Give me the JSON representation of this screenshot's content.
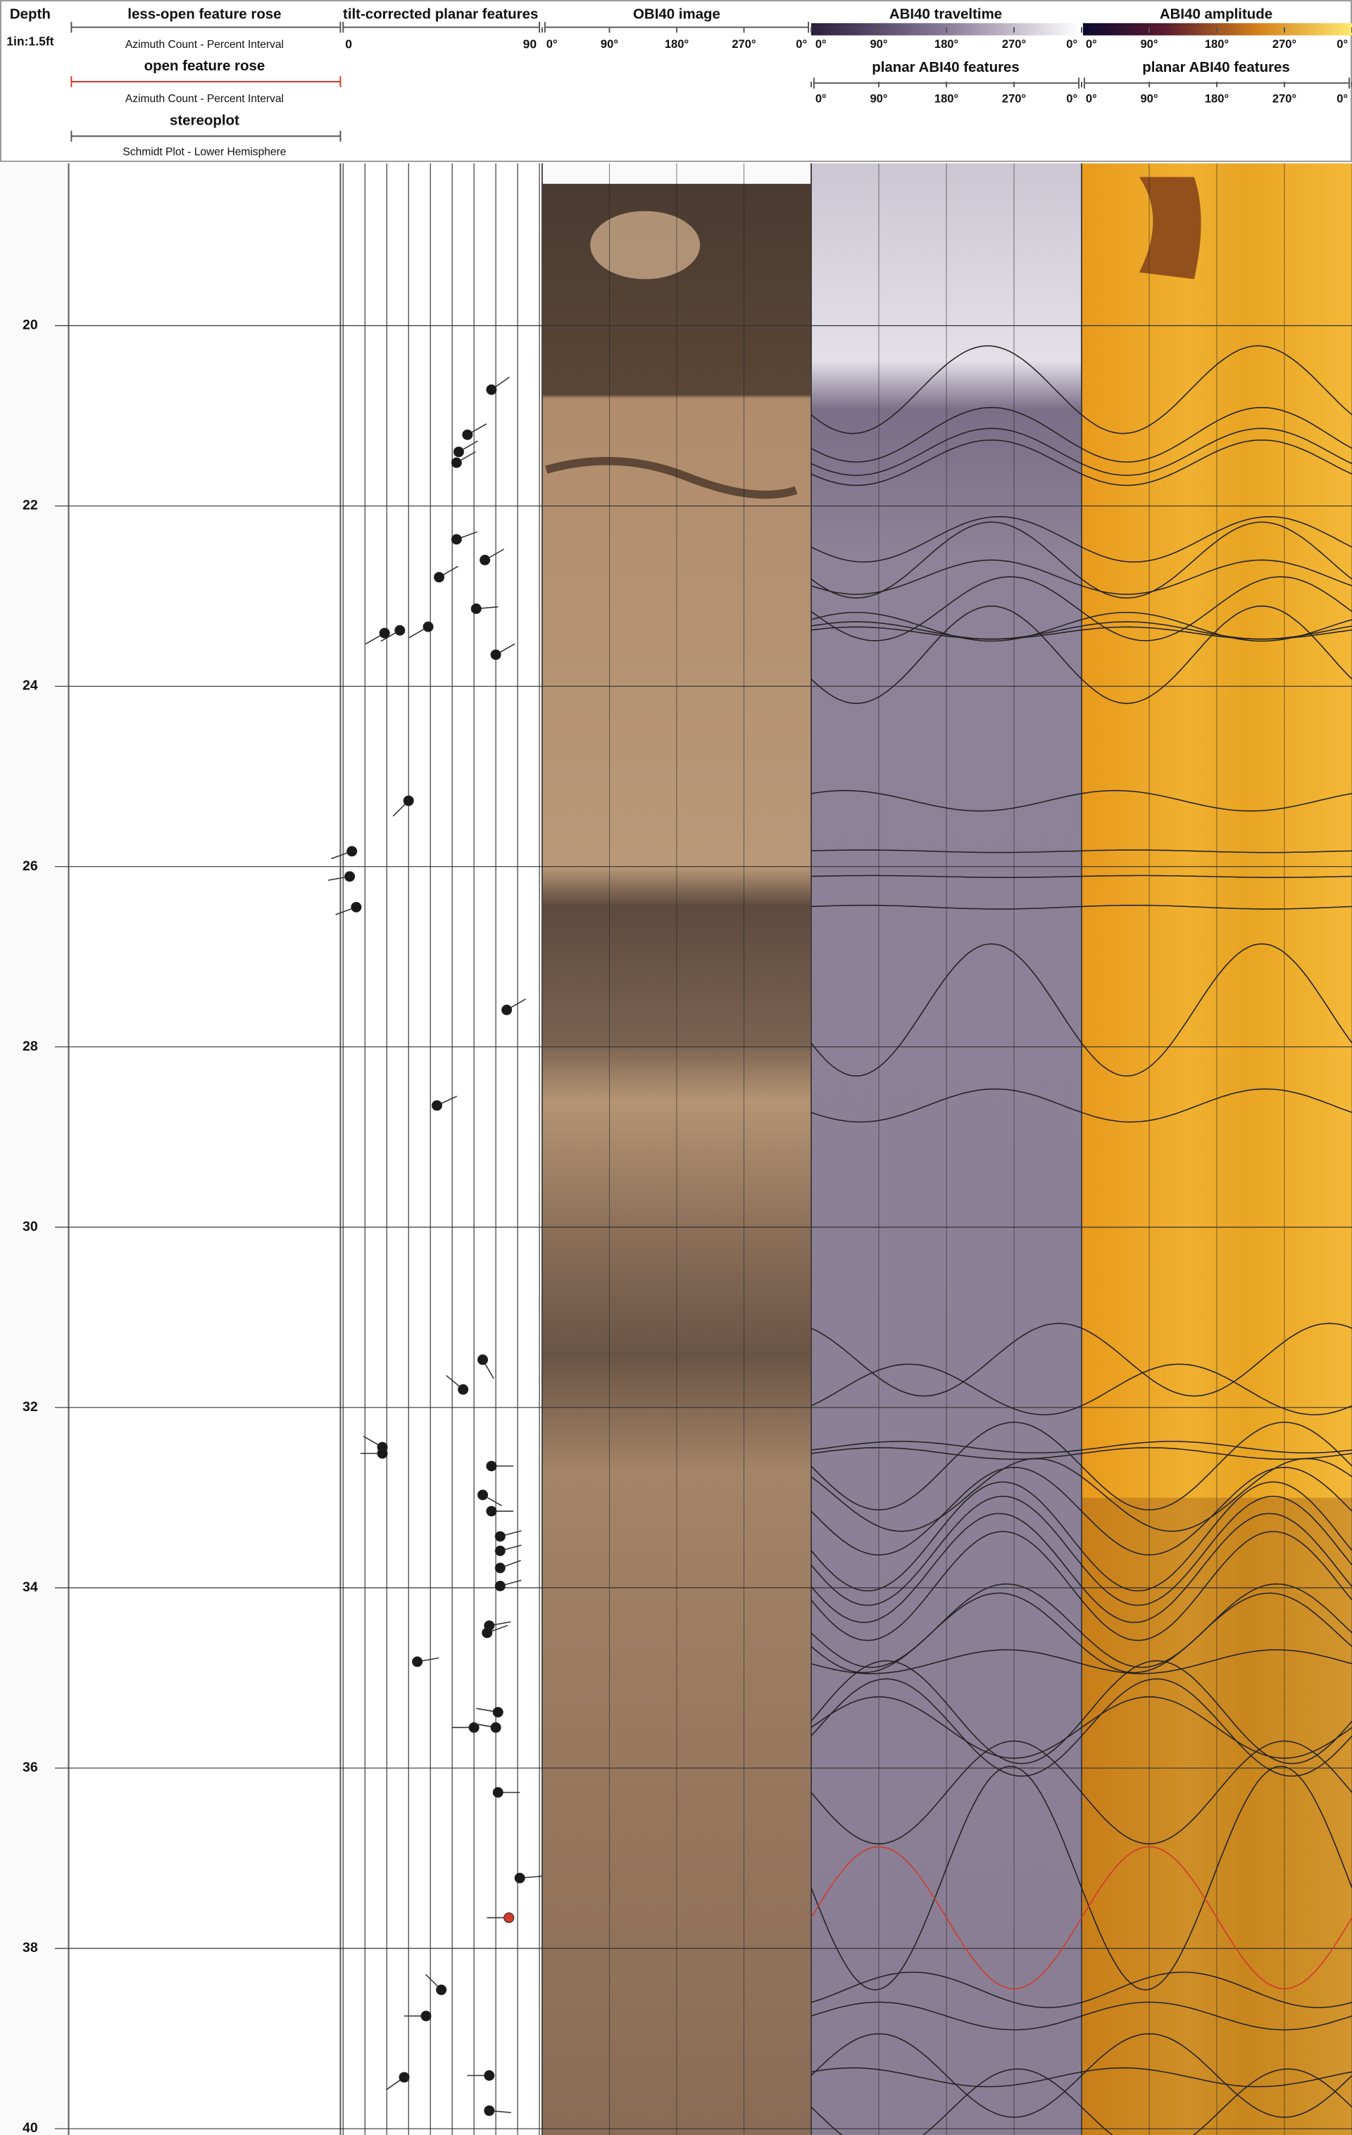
{
  "chart_data": {
    "type": "tadpole",
    "depth_label": "Depth",
    "scale_label": "1in:1.5ft",
    "less_open_rose_title": "less-open feature rose",
    "less_open_rose_subtitle": "Azimuth Count - Percent Interval",
    "open_rose_title": "open feature rose",
    "open_rose_subtitle": "Azimuth Count - Percent Interval",
    "stereoplot_title": "stereoplot",
    "stereoplot_subtitle": "Schmidt Plot - Lower Hemisphere",
    "dip_title": "tilt-corrected planar features",
    "obi_title": "OBI40 image",
    "traveltime_title": "ABI40 traveltime",
    "traveltime_subtitle": "planar ABI40 features",
    "amplitude_title": "ABI40 amplitude",
    "amplitude_subtitle": "planar ABI40 features",
    "xlim": [
      0,
      90
    ],
    "xticks": [
      0,
      90
    ],
    "xgrid": [
      10,
      20,
      30,
      40,
      50,
      60,
      70,
      80
    ],
    "ylim": [
      18.2,
      40.07
    ],
    "yticks": [
      20,
      22,
      24,
      26,
      28,
      30,
      32,
      34,
      36,
      38,
      40
    ],
    "azimuth_ticks": [
      {
        "value": 0,
        "label": "0°"
      },
      {
        "value": 90,
        "label": "90°"
      },
      {
        "value": 180,
        "label": "180°"
      },
      {
        "value": 270,
        "label": "270°"
      },
      {
        "value": 360,
        "label": "0°"
      }
    ],
    "depth": [
      20.71,
      21.21,
      21.4,
      21.52,
      22.37,
      22.6,
      22.79,
      23.14,
      23.34,
      23.38,
      23.41,
      23.65,
      25.27,
      25.83,
      26.11,
      26.45,
      27.59,
      28.65,
      31.47,
      31.8,
      32.44,
      32.51,
      32.65,
      32.97,
      33.15,
      33.43,
      33.59,
      33.78,
      33.98,
      34.42,
      34.5,
      34.82,
      35.38,
      35.55,
      35.55,
      36.27,
      37.22,
      37.66,
      38.46,
      38.75,
      39.41,
      39.43,
      39.8
    ],
    "dip": [
      68,
      57,
      53,
      52,
      52,
      65,
      44,
      61,
      39,
      26,
      19,
      70,
      30,
      4,
      3,
      6,
      75,
      43,
      64,
      55,
      18,
      18,
      68,
      64,
      68,
      72,
      72,
      72,
      72,
      67,
      66,
      34,
      71,
      60,
      70,
      71,
      81,
      76,
      45,
      38,
      67,
      28,
      67
    ],
    "azimuth": [
      55,
      60,
      60,
      60,
      70,
      60,
      60,
      85,
      240,
      240,
      240,
      60,
      225,
      250,
      260,
      250,
      60,
      65,
      150,
      310,
      300,
      270,
      90,
      120,
      90,
      75,
      75,
      70,
      75,
      80,
      70,
      80,
      280,
      270,
      280,
      90,
      85,
      270,
      315,
      270,
      270,
      235,
      95
    ],
    "color": "#1a1a1a",
    "highlight_index": 37,
    "highlight_color": "#d03a2a",
    "sinusoid_color": "#222222"
  }
}
